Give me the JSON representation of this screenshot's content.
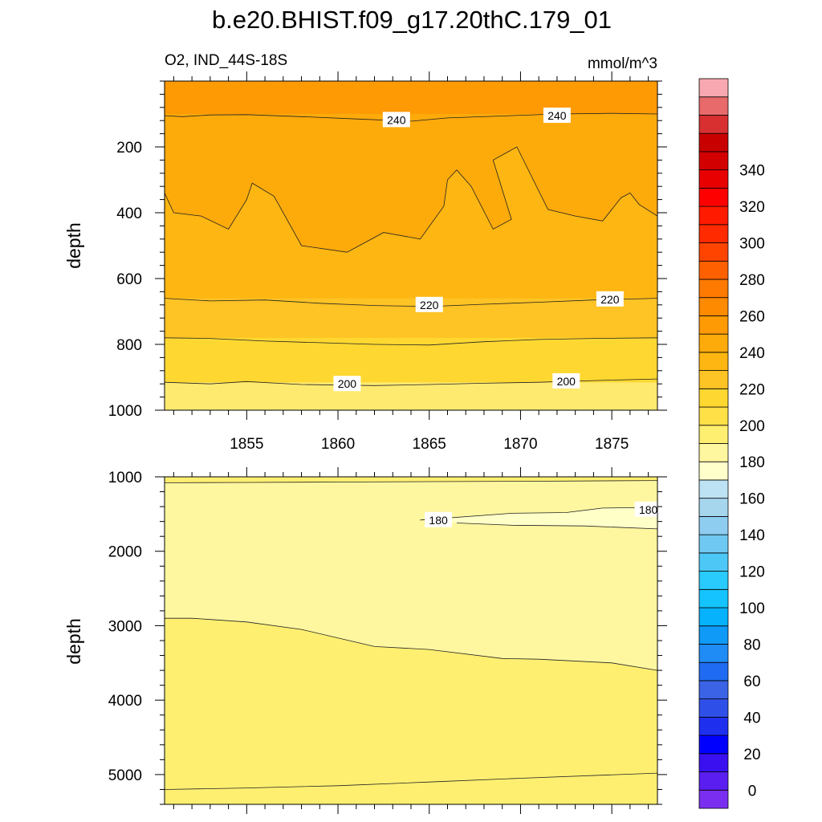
{
  "chart_data": {
    "type": "contour",
    "title": "b.e20.BHIST.f09_g17.20thC.179_01",
    "subtitle_left": "O2, IND_44S-18S",
    "subtitle_right": "mmol/m^3",
    "x": {
      "label": "",
      "ticks": [
        1855,
        1860,
        1865,
        1870,
        1875
      ],
      "range": [
        1850.5,
        1877.5
      ]
    },
    "panels": [
      {
        "name": "upper",
        "ylabel": "depth",
        "ylim": [
          0,
          1000
        ],
        "yticks": [
          200,
          400,
          600,
          800,
          1000
        ],
        "show_xtick_labels": true,
        "background_fill": "#fdb612",
        "regions": [
          {
            "fill": "#fe9a04",
            "boundary": [
              [
                1850.5,
                0
              ],
              [
                1877.5,
                0
              ],
              [
                1877.5,
                100
              ],
              [
                1875,
                98
              ],
              [
                1872,
                100
              ],
              [
                1869,
                106
              ],
              [
                1866,
                112
              ],
              [
                1864,
                122
              ],
              [
                1861,
                115
              ],
              [
                1858,
                108
              ],
              [
                1855,
                102
              ],
              [
                1853,
                103
              ],
              [
                1851.5,
                108
              ],
              [
                1850.5,
                105
              ]
            ]
          },
          {
            "fill": "#fdaa0b",
            "boundary": [
              [
                1850.5,
                100
              ],
              [
                1877.5,
                100
              ],
              [
                1877.5,
                410
              ],
              [
                1876.5,
                375
              ],
              [
                1876,
                340
              ],
              [
                1875.5,
                355
              ],
              [
                1874.5,
                425
              ],
              [
                1873,
                410
              ],
              [
                1871.5,
                390
              ],
              [
                1869.8,
                200
              ],
              [
                1868.5,
                240
              ],
              [
                1869.5,
                420
              ],
              [
                1868.5,
                450
              ],
              [
                1867.3,
                320
              ],
              [
                1866.5,
                270
              ],
              [
                1866,
                300
              ],
              [
                1865.8,
                380
              ],
              [
                1864.5,
                480
              ],
              [
                1862.5,
                460
              ],
              [
                1860.5,
                520
              ],
              [
                1858,
                500
              ],
              [
                1856.5,
                350
              ],
              [
                1855.3,
                310
              ],
              [
                1855,
                360
              ],
              [
                1854,
                450
              ],
              [
                1852.5,
                410
              ],
              [
                1851,
                400
              ],
              [
                1850.5,
                340
              ]
            ]
          },
          {
            "fill": "#fec324",
            "boundary": [
              [
                1850.5,
                660
              ],
              [
                1877.5,
                660
              ],
              [
                1877.5,
                780
              ],
              [
                1850.5,
                780
              ]
            ]
          },
          {
            "fill": "#fed831",
            "boundary": [
              [
                1850.5,
                780
              ],
              [
                1877.5,
                780
              ],
              [
                1877.5,
                915
              ],
              [
                1850.5,
                915
              ]
            ]
          },
          {
            "fill": "#ffea70",
            "boundary": [
              [
                1850.5,
                915
              ],
              [
                1877.5,
                915
              ],
              [
                1877.5,
                1000
              ],
              [
                1850.5,
                1000
              ]
            ]
          }
        ],
        "contours": [
          {
            "level": 240,
            "points": [
              [
                1850.5,
                105
              ],
              [
                1851.5,
                108
              ],
              [
                1853,
                103
              ],
              [
                1855,
                102
              ],
              [
                1858,
                108
              ],
              [
                1861,
                115
              ],
              [
                1864,
                122
              ],
              [
                1866,
                112
              ],
              [
                1869,
                106
              ],
              [
                1872,
                100
              ],
              [
                1875,
                98
              ],
              [
                1877.5,
                100
              ]
            ]
          },
          {
            "level": 230,
            "points": [
              [
                1850.5,
                340
              ],
              [
                1851,
                400
              ],
              [
                1852.5,
                410
              ],
              [
                1854,
                450
              ],
              [
                1855,
                360
              ],
              [
                1855.3,
                310
              ],
              [
                1856.5,
                350
              ],
              [
                1858,
                500
              ],
              [
                1860.5,
                520
              ],
              [
                1862.5,
                460
              ],
              [
                1864.5,
                480
              ],
              [
                1865.8,
                380
              ],
              [
                1866,
                300
              ],
              [
                1866.5,
                270
              ],
              [
                1867.3,
                320
              ],
              [
                1868.5,
                450
              ],
              [
                1869.5,
                420
              ],
              [
                1868.5,
                240
              ],
              [
                1869.8,
                200
              ],
              [
                1871.5,
                390
              ],
              [
                1873,
                410
              ],
              [
                1874.5,
                425
              ],
              [
                1875.5,
                355
              ],
              [
                1876,
                340
              ],
              [
                1876.5,
                375
              ],
              [
                1877.5,
                410
              ]
            ]
          },
          {
            "level": 220,
            "points": [
              [
                1850.5,
                660
              ],
              [
                1853,
                668
              ],
              [
                1856,
                665
              ],
              [
                1859,
                675
              ],
              [
                1862,
                682
              ],
              [
                1865,
                685
              ],
              [
                1868,
                678
              ],
              [
                1871,
                672
              ],
              [
                1874,
                665
              ],
              [
                1877.5,
                660
              ]
            ]
          },
          {
            "level": 210,
            "points": [
              [
                1850.5,
                780
              ],
              [
                1853,
                782
              ],
              [
                1856,
                790
              ],
              [
                1859,
                795
              ],
              [
                1862,
                800
              ],
              [
                1865,
                802
              ],
              [
                1868,
                792
              ],
              [
                1871,
                785
              ],
              [
                1874,
                782
              ],
              [
                1877.5,
                780
              ]
            ]
          },
          {
            "level": 200,
            "points": [
              [
                1850.5,
                915
              ],
              [
                1853,
                920
              ],
              [
                1855,
                913
              ],
              [
                1858,
                922
              ],
              [
                1862,
                925
              ],
              [
                1865,
                922
              ],
              [
                1868,
                918
              ],
              [
                1871,
                915
              ],
              [
                1874,
                910
              ],
              [
                1877.5,
                905
              ]
            ]
          }
        ],
        "contour_labels": [
          {
            "text": "240",
            "x": 1863.2,
            "y": 118
          },
          {
            "text": "240",
            "x": 1872.0,
            "y": 105
          },
          {
            "text": "220",
            "x": 1865.0,
            "y": 680
          },
          {
            "text": "220",
            "x": 1874.9,
            "y": 663
          },
          {
            "text": "200",
            "x": 1860.5,
            "y": 920
          },
          {
            "text": "200",
            "x": 1872.5,
            "y": 912
          }
        ]
      },
      {
        "name": "lower",
        "ylabel": "depth",
        "ylim": [
          1000,
          5400
        ],
        "yticks": [
          1000,
          2000,
          3000,
          4000,
          5000
        ],
        "show_xtick_labels": false,
        "background_fill": "#ffef71",
        "regions": [
          {
            "fill": "#fff7a0",
            "boundary": [
              [
                1850.5,
                1080
              ],
              [
                1877.5,
                1050
              ],
              [
                1877.5,
                3600
              ],
              [
                1875,
                3500
              ],
              [
                1871,
                3450
              ],
              [
                1869,
                3440
              ],
              [
                1865,
                3320
              ],
              [
                1862,
                3280
              ],
              [
                1858,
                3050
              ],
              [
                1855,
                2950
              ],
              [
                1852,
                2900
              ],
              [
                1850.5,
                2900
              ]
            ]
          },
          {
            "fill": "#ffffc8",
            "boundary": [
              [
                1864.5,
                1580
              ],
              [
                1869.5,
                1490
              ],
              [
                1872.5,
                1480
              ],
              [
                1874.5,
                1420
              ],
              [
                1877.5,
                1410
              ],
              [
                1877.5,
                1700
              ],
              [
                1873.5,
                1660
              ],
              [
                1869.5,
                1650
              ],
              [
                1866.5,
                1620
              ]
            ]
          }
        ],
        "contours": [
          {
            "level": 190,
            "points": [
              [
                1850.5,
                1080
              ],
              [
                1855,
                1075
              ],
              [
                1860,
                1070
              ],
              [
                1865,
                1065
              ],
              [
                1870,
                1060
              ],
              [
                1877.5,
                1050
              ]
            ]
          },
          {
            "level": 180,
            "points": [
              [
                1866.5,
                1620
              ],
              [
                1869.5,
                1650
              ],
              [
                1873.5,
                1660
              ],
              [
                1877.5,
                1700
              ]
            ]
          },
          {
            "level": 180,
            "points": [
              [
                1864.5,
                1580
              ],
              [
                1869.5,
                1490
              ],
              [
                1872.5,
                1480
              ],
              [
                1874.5,
                1420
              ],
              [
                1877.5,
                1410
              ]
            ]
          },
          {
            "level": 190,
            "points": [
              [
                1850.5,
                2900
              ],
              [
                1852,
                2900
              ],
              [
                1855,
                2950
              ],
              [
                1858,
                3050
              ],
              [
                1862,
                3280
              ],
              [
                1865,
                3320
              ],
              [
                1869,
                3440
              ],
              [
                1871,
                3450
              ],
              [
                1875,
                3500
              ],
              [
                1877.5,
                3600
              ]
            ]
          },
          {
            "level": 200,
            "points": [
              [
                1850.5,
                5200
              ],
              [
                1855,
                5180
              ],
              [
                1860,
                5150
              ],
              [
                1865,
                5100
              ],
              [
                1870,
                5050
              ],
              [
                1877.5,
                4980
              ]
            ]
          }
        ],
        "contour_labels": [
          {
            "text": "180",
            "x": 1865.5,
            "y": 1580
          },
          {
            "text": "180",
            "x": 1877.0,
            "y": 1440
          }
        ]
      }
    ],
    "colorbar": {
      "labels": [
        0,
        20,
        40,
        60,
        80,
        100,
        120,
        140,
        160,
        180,
        200,
        220,
        240,
        260,
        280,
        300,
        320,
        340
      ],
      "colors": [
        "#7a2ff0",
        "#5a1ef0",
        "#3a10f0",
        "#0000ff",
        "#1e2fee",
        "#2f50e8",
        "#3a63e6",
        "#1f6bf2",
        "#1f8cf6",
        "#0f9af8",
        "#06b2fc",
        "#15c4fe",
        "#29cafc",
        "#4dc8f6",
        "#6fc8f2",
        "#8ecdf0",
        "#a6d6ee",
        "#bde2f3",
        "#ffffcc",
        "#fff7a0",
        "#ffef71",
        "#ffe047",
        "#fed831",
        "#fec324",
        "#fdb612",
        "#fdaa0b",
        "#fe9a04",
        "#fe8a00",
        "#fe7a00",
        "#fe6000",
        "#ff4400",
        "#ff2a00",
        "#ff1a00",
        "#ff0000",
        "#e80000",
        "#d20000",
        "#c80000",
        "#d83030",
        "#e86a6a",
        "#f8a8b0"
      ]
    }
  }
}
